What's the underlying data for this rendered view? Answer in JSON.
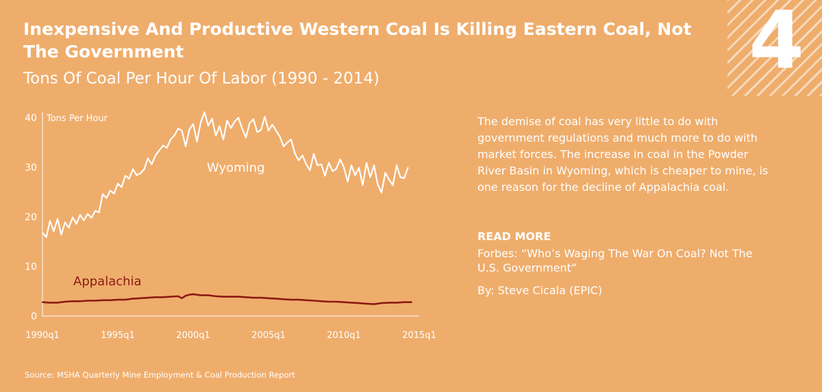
{
  "panel_number": "4",
  "title": "Inexpensive And Productive Western Coal Is Killing Eastern Coal, Not The Government",
  "subtitle": "Tons Of Coal Per Hour Of Labor (1990 - 2014)",
  "description": "The demise of coal has very little to do with government regulations and much more to do with market forces.  The increase in coal in the Powder River Basin in Wyoming, which is cheaper to mine, is one reason for the decline of Appalachia coal.",
  "read_more": {
    "heading": "READ MORE",
    "article": "Forbes: “Who’s Waging The War On Coal? Not The U.S. Government”",
    "byline": "By: Steve Cicala (EPIC)"
  },
  "source": "Source: MSHA Quarterly Mine Employment & Coal Production Report",
  "colors": {
    "background": "#EFAD6C",
    "foreground": "#ffffff",
    "appalachia": "#8B1A12"
  },
  "chart_data": {
    "type": "line",
    "ylabel": "Tons Per Hour",
    "xlabel": "",
    "ylim": [
      0,
      40
    ],
    "xlim": [
      1990,
      2015
    ],
    "yticks": [
      0,
      10,
      20,
      30,
      40
    ],
    "xticks": [
      1990,
      1995,
      2000,
      2005,
      2010,
      2015
    ],
    "xtick_labels": [
      "1990q1",
      "1995q1",
      "2000q1",
      "2005q1",
      "2010q1",
      "2015q1"
    ],
    "grid": false,
    "series": [
      {
        "name": "Wyoming",
        "x": [
          1990.0,
          1990.25,
          1990.5,
          1990.75,
          1991.0,
          1991.25,
          1991.5,
          1991.75,
          1992.0,
          1992.25,
          1992.5,
          1992.75,
          1993.0,
          1993.25,
          1993.5,
          1993.75,
          1994.0,
          1994.25,
          1994.5,
          1994.75,
          1995.0,
          1995.25,
          1995.5,
          1995.75,
          1996.0,
          1996.25,
          1996.5,
          1996.75,
          1997.0,
          1997.25,
          1997.5,
          1997.75,
          1998.0,
          1998.25,
          1998.5,
          1998.75,
          1999.0,
          1999.25,
          1999.5,
          1999.75,
          2000.0,
          2000.25,
          2000.5,
          2000.75,
          2001.0,
          2001.25,
          2001.5,
          2001.75,
          2002.0,
          2002.25,
          2002.5,
          2002.75,
          2003.0,
          2003.25,
          2003.5,
          2003.75,
          2004.0,
          2004.25,
          2004.5,
          2004.75,
          2005.0,
          2005.25,
          2005.5,
          2005.75,
          2006.0,
          2006.25,
          2006.5,
          2006.75,
          2007.0,
          2007.25,
          2007.5,
          2007.75,
          2008.0,
          2008.25,
          2008.5,
          2008.75,
          2009.0,
          2009.25,
          2009.5,
          2009.75,
          2010.0,
          2010.25,
          2010.5,
          2010.75,
          2011.0,
          2011.25,
          2011.5,
          2011.75,
          2012.0,
          2012.25,
          2012.5,
          2012.75,
          2013.0,
          2013.25,
          2013.5,
          2013.75,
          2014.0,
          2014.25
        ],
        "values": [
          16.8,
          15.9,
          19.2,
          17.1,
          19.6,
          16.4,
          18.9,
          17.8,
          19.9,
          18.6,
          20.4,
          19.3,
          20.6,
          19.8,
          21.2,
          20.9,
          24.6,
          23.8,
          25.3,
          24.7,
          26.7,
          26.0,
          28.3,
          27.7,
          29.6,
          28.4,
          28.8,
          29.6,
          31.8,
          30.6,
          32.4,
          33.4,
          34.4,
          33.9,
          35.6,
          36.4,
          37.8,
          37.4,
          34.2,
          37.6,
          38.7,
          35.2,
          39.0,
          41.1,
          38.4,
          39.8,
          36.4,
          38.3,
          35.6,
          39.4,
          37.9,
          39.2,
          40.0,
          37.8,
          36.0,
          38.9,
          39.7,
          37.1,
          37.5,
          40.2,
          37.4,
          38.6,
          37.4,
          36.2,
          34.2,
          35.0,
          35.6,
          32.8,
          31.4,
          32.4,
          30.6,
          29.4,
          32.7,
          30.4,
          30.6,
          28.3,
          30.9,
          29.2,
          29.7,
          31.6,
          30.0,
          27.1,
          30.4,
          28.4,
          29.9,
          26.4,
          30.9,
          28.0,
          30.4,
          26.5,
          24.9,
          28.9,
          27.5,
          26.4,
          30.4,
          28.0,
          27.8,
          29.9
        ]
      },
      {
        "name": "Appalachia",
        "x": [
          1990.0,
          1990.5,
          1991.0,
          1991.5,
          1992.0,
          1992.5,
          1993.0,
          1993.5,
          1994.0,
          1994.5,
          1995.0,
          1995.5,
          1996.0,
          1996.5,
          1997.0,
          1997.5,
          1998.0,
          1998.5,
          1999.0,
          1999.25,
          1999.5,
          1999.75,
          2000.0,
          2000.5,
          2001.0,
          2001.5,
          2002.0,
          2002.5,
          2003.0,
          2003.5,
          2004.0,
          2004.5,
          2005.0,
          2005.5,
          2006.0,
          2006.5,
          2007.0,
          2007.5,
          2008.0,
          2008.5,
          2009.0,
          2009.5,
          2010.0,
          2010.5,
          2011.0,
          2011.5,
          2012.0,
          2012.5,
          2013.0,
          2013.5,
          2014.0,
          2014.5
        ],
        "values": [
          2.8,
          2.7,
          2.7,
          2.9,
          3.0,
          3.0,
          3.1,
          3.1,
          3.2,
          3.2,
          3.3,
          3.3,
          3.5,
          3.6,
          3.7,
          3.8,
          3.8,
          3.9,
          4.0,
          3.6,
          4.1,
          4.3,
          4.4,
          4.2,
          4.2,
          4.0,
          3.9,
          3.9,
          3.9,
          3.8,
          3.7,
          3.7,
          3.6,
          3.5,
          3.4,
          3.3,
          3.3,
          3.2,
          3.1,
          3.0,
          2.9,
          2.9,
          2.8,
          2.7,
          2.6,
          2.5,
          2.4,
          2.6,
          2.7,
          2.7,
          2.8,
          2.8
        ]
      }
    ],
    "annotations": [
      "Wyoming",
      "Appalachia"
    ]
  }
}
